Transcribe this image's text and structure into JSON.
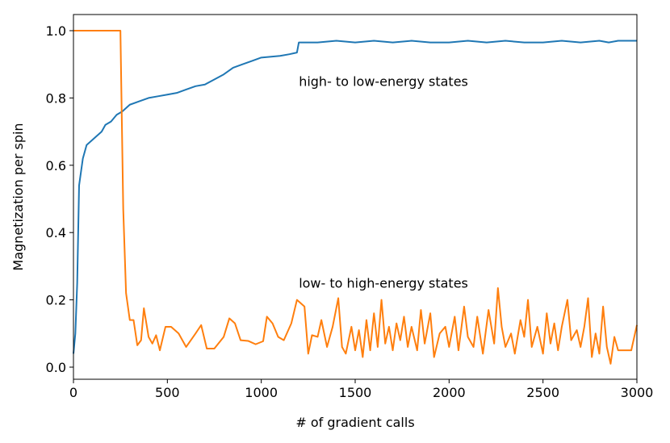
{
  "chart_data": {
    "type": "line",
    "xlabel": "# of gradient calls",
    "ylabel": "Magnetization per spin",
    "annotations": [
      {
        "text": "high- to low-energy states",
        "x": 1200,
        "y": 0.85
      },
      {
        "text": "low- to high-energy states",
        "x": 1200,
        "y": 0.25
      }
    ],
    "xlim": [
      0,
      3000
    ],
    "xticks": [
      0,
      500,
      1000,
      1500,
      2000,
      2500,
      3000
    ],
    "ylim": [
      -0.036,
      1.048
    ],
    "yticks": [
      {
        "value": 0,
        "label": "0.0"
      },
      {
        "value": 0.2,
        "label": "0.2"
      },
      {
        "value": 0.4,
        "label": "0.4"
      },
      {
        "value": 0.6,
        "label": "0.6"
      },
      {
        "value": 0.8,
        "label": "0.8"
      },
      {
        "value": 1,
        "label": "1.0"
      }
    ],
    "grid": false,
    "series": [
      {
        "color": "#1f77b4",
        "x": [
          0,
          10,
          20,
          30,
          50,
          70,
          100,
          150,
          170,
          200,
          230,
          260,
          300,
          350,
          400,
          450,
          500,
          550,
          600,
          650,
          700,
          750,
          800,
          850,
          900,
          950,
          1000,
          1100,
          1150,
          1190,
          1200,
          1300,
          1400,
          1500,
          1600,
          1700,
          1800,
          1900,
          2000,
          2100,
          2200,
          2300,
          2400,
          2500,
          2600,
          2700,
          2800,
          2850,
          2900,
          3000
        ],
        "values": [
          0.04,
          0.1,
          0.25,
          0.54,
          0.62,
          0.66,
          0.675,
          0.7,
          0.72,
          0.73,
          0.75,
          0.76,
          0.78,
          0.79,
          0.8,
          0.805,
          0.81,
          0.815,
          0.825,
          0.835,
          0.84,
          0.855,
          0.87,
          0.89,
          0.9,
          0.91,
          0.92,
          0.925,
          0.93,
          0.935,
          0.965,
          0.965,
          0.97,
          0.965,
          0.97,
          0.965,
          0.97,
          0.965,
          0.965,
          0.97,
          0.965,
          0.97,
          0.965,
          0.965,
          0.97,
          0.965,
          0.97,
          0.965,
          0.97,
          0.97
        ]
      },
      {
        "color": "#ff7f0e",
        "x": [
          0,
          250,
          265,
          280,
          300,
          320,
          340,
          360,
          375,
          400,
          420,
          440,
          460,
          490,
          520,
          560,
          600,
          650,
          680,
          710,
          750,
          800,
          830,
          860,
          890,
          930,
          970,
          1010,
          1030,
          1060,
          1090,
          1120,
          1160,
          1190,
          1230,
          1250,
          1270,
          1300,
          1320,
          1350,
          1380,
          1410,
          1430,
          1450,
          1480,
          1500,
          1520,
          1540,
          1560,
          1580,
          1600,
          1620,
          1640,
          1660,
          1680,
          1700,
          1720,
          1740,
          1760,
          1780,
          1800,
          1830,
          1850,
          1870,
          1900,
          1920,
          1950,
          1980,
          2000,
          2030,
          2050,
          2080,
          2100,
          2130,
          2150,
          2180,
          2210,
          2240,
          2260,
          2280,
          2300,
          2330,
          2350,
          2380,
          2400,
          2420,
          2440,
          2470,
          2500,
          2520,
          2540,
          2560,
          2580,
          2600,
          2630,
          2650,
          2680,
          2700,
          2720,
          2740,
          2760,
          2780,
          2800,
          2820,
          2840,
          2860,
          2880,
          2900,
          2940,
          2970,
          3000
        ],
        "values": [
          1.0,
          1.0,
          0.47,
          0.22,
          0.14,
          0.14,
          0.065,
          0.08,
          0.175,
          0.09,
          0.07,
          0.095,
          0.05,
          0.12,
          0.12,
          0.1,
          0.06,
          0.1,
          0.125,
          0.055,
          0.055,
          0.09,
          0.145,
          0.13,
          0.08,
          0.078,
          0.068,
          0.077,
          0.15,
          0.13,
          0.09,
          0.08,
          0.13,
          0.2,
          0.18,
          0.04,
          0.095,
          0.09,
          0.14,
          0.06,
          0.12,
          0.205,
          0.06,
          0.04,
          0.12,
          0.05,
          0.11,
          0.03,
          0.14,
          0.05,
          0.16,
          0.06,
          0.2,
          0.07,
          0.12,
          0.05,
          0.13,
          0.08,
          0.15,
          0.06,
          0.12,
          0.05,
          0.17,
          0.07,
          0.16,
          0.03,
          0.1,
          0.12,
          0.06,
          0.15,
          0.05,
          0.18,
          0.09,
          0.06,
          0.15,
          0.04,
          0.17,
          0.07,
          0.235,
          0.12,
          0.06,
          0.1,
          0.04,
          0.14,
          0.09,
          0.2,
          0.06,
          0.12,
          0.04,
          0.16,
          0.07,
          0.13,
          0.05,
          0.12,
          0.2,
          0.08,
          0.11,
          0.06,
          0.12,
          0.205,
          0.03,
          0.1,
          0.04,
          0.18,
          0.06,
          0.01,
          0.09,
          0.05,
          0.05,
          0.05,
          0.125
        ]
      }
    ]
  }
}
